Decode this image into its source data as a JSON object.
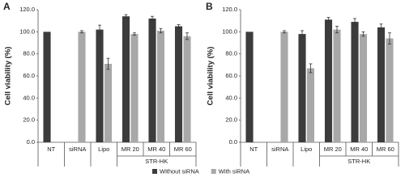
{
  "chart_data": [
    {
      "type": "bar",
      "title": "A",
      "y_label": "Cell viability (%)",
      "categories": [
        "NT",
        "siRNA",
        "Lipo",
        "MR 20",
        "MR 40",
        "MR 60"
      ],
      "category_groups": [
        {
          "label": "STR-HK",
          "start": 3,
          "end": 5
        }
      ],
      "series": [
        {
          "name": "Without siRNA",
          "color": "#3c3c3c",
          "values": [
            100,
            null,
            102,
            114,
            112,
            105
          ],
          "errors": [
            null,
            null,
            4,
            1.5,
            2,
            1.5
          ]
        },
        {
          "name": "With siRNA",
          "color": "#a8a8a8",
          "values": [
            null,
            100,
            71,
            98,
            101,
            96
          ],
          "errors": [
            null,
            1,
            5,
            1,
            2,
            3
          ]
        }
      ],
      "ylim": [
        0,
        120
      ],
      "yticks": [
        {
          "value": 0,
          "label": "0.0"
        },
        {
          "value": 20,
          "label": "20.0"
        },
        {
          "value": 40,
          "label": "40.0"
        },
        {
          "value": 60,
          "label": "60.0"
        },
        {
          "value": 80,
          "label": "80.0"
        },
        {
          "value": 100,
          "label": "100.0"
        },
        {
          "value": 120,
          "label": "120.0"
        }
      ]
    },
    {
      "type": "bar",
      "title": "B",
      "y_label": "Cell viability (%)",
      "categories": [
        "NT",
        "siRNA",
        "Lipo",
        "MR 20",
        "MR 40",
        "MR 60"
      ],
      "category_groups": [
        {
          "label": "STR-HK",
          "start": 3,
          "end": 5
        }
      ],
      "series": [
        {
          "name": "Without siRNA",
          "color": "#3c3c3c",
          "values": [
            100,
            null,
            98,
            111,
            109,
            104
          ],
          "errors": [
            null,
            null,
            3,
            2,
            3,
            3
          ]
        },
        {
          "name": "With siRNA",
          "color": "#a8a8a8",
          "values": [
            null,
            100,
            67,
            102,
            98,
            94
          ],
          "errors": [
            null,
            1,
            4,
            3,
            2,
            5
          ]
        }
      ],
      "ylim": [
        0,
        120
      ],
      "yticks": [
        {
          "value": 0,
          "label": "0.0"
        },
        {
          "value": 20,
          "label": "20.0"
        },
        {
          "value": 40,
          "label": "40.0"
        },
        {
          "value": 60,
          "label": "60.0"
        },
        {
          "value": 80,
          "label": "80.0"
        },
        {
          "value": 100,
          "label": "100.0"
        },
        {
          "value": 120,
          "label": "120.0"
        }
      ]
    }
  ]
}
